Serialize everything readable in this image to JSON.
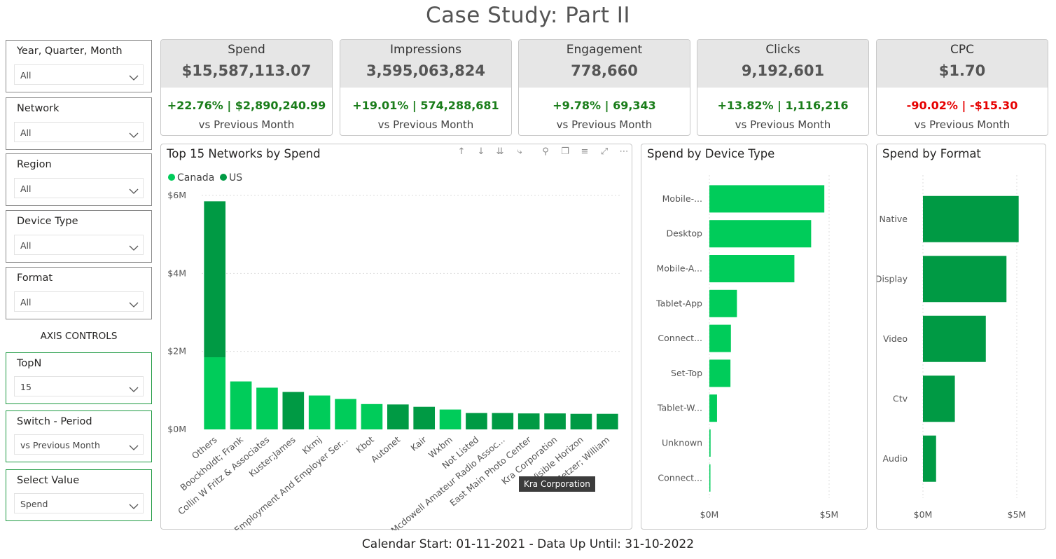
{
  "page": {
    "title": "Case Study: Part II",
    "footer": "Calendar Start: 01-11-2021 - Data Up Until: 31-10-2022"
  },
  "colors": {
    "canada": "#00cc5a",
    "us": "#009a44",
    "bar": "#00cc5a",
    "positive": "#1a7d1a",
    "negative": "#e60000"
  },
  "slicers": [
    {
      "label": "Year, Quarter, Month",
      "value": "All"
    },
    {
      "label": "Network",
      "value": "All"
    },
    {
      "label": "Region",
      "value": "All"
    },
    {
      "label": "Device Type",
      "value": "All"
    },
    {
      "label": "Format",
      "value": "All"
    }
  ],
  "axis_controls": {
    "title": "AXIS CONTROLS",
    "slicers": [
      {
        "label": "TopN",
        "value": "15"
      },
      {
        "label": "Switch - Period",
        "value": "vs Previous Month"
      },
      {
        "label": "Select Value",
        "value": "Spend"
      }
    ]
  },
  "kpis": [
    {
      "label": "Spend",
      "value": "$15,587,113.07",
      "delta": "+22.76% | $2,890,240.99",
      "trend": "positive",
      "sub": "vs Previous Month"
    },
    {
      "label": "Impressions",
      "value": "3,595,063,824",
      "delta": "+19.01% | 574,288,681",
      "trend": "positive",
      "sub": "vs Previous Month"
    },
    {
      "label": "Engagement",
      "value": "778,660",
      "delta": "+9.78% | 69,343",
      "trend": "positive",
      "sub": "vs Previous Month"
    },
    {
      "label": "Clicks",
      "value": "9,192,601",
      "delta": "+13.82% | 1,116,216",
      "trend": "positive",
      "sub": "vs Previous Month"
    },
    {
      "label": "CPC",
      "value": "$1.70",
      "delta": "-90.02% | -$15.30",
      "trend": "negative",
      "sub": "vs Previous Month"
    }
  ],
  "toolbar": {
    "icons": [
      "sort-ascending-icon",
      "sort-descending-icon",
      "expand-all-icon",
      "drill-down-icon",
      "pin-icon",
      "copy-icon",
      "filter-icon",
      "focus-mode-icon",
      "more-options-icon"
    ]
  },
  "tooltip": {
    "text": "Kra Corporation"
  },
  "chart_data": [
    {
      "type": "bar",
      "title": "Top 15 Networks by Spend",
      "stacked": true,
      "legend": "top-left",
      "categories": [
        "Others",
        "Boockholdt; Frank",
        "Collin W Fritz & Associates",
        "Kuster;James",
        "Kkmj",
        "Employment And Employer Ser...",
        "Kbot",
        "Autonet",
        "Kair",
        "Wxbm",
        "Not Listed",
        "Mcdowell Amateur Radio Assoc...",
        "East Main Photo Center",
        "Kra Corporation",
        "Visible Horizon",
        "Metzer; William"
      ],
      "series": [
        {
          "name": "Canada",
          "values": [
            1.85,
            1.23,
            1.07,
            0,
            0.87,
            0.78,
            0.65,
            0,
            0,
            0.51,
            0,
            0,
            0,
            0,
            0,
            0
          ]
        },
        {
          "name": "US",
          "values": [
            4.0,
            0,
            0,
            0.96,
            0,
            0,
            0,
            0.64,
            0.58,
            0,
            0.42,
            0.42,
            0.41,
            0.41,
            0.4,
            0.4
          ]
        }
      ],
      "yticks": [
        "$0M",
        "$2M",
        "$4M",
        "$6M"
      ],
      "ylim": [
        0,
        6
      ]
    },
    {
      "type": "bar",
      "orientation": "horizontal",
      "title": "Spend by Device Type",
      "categories": [
        "Mobile-...",
        "Desktop",
        "Mobile-A...",
        "Tablet-App",
        "Connect...",
        "Set-Top",
        "Tablet-W...",
        "Unknown",
        "Connect..."
      ],
      "values": [
        4.8,
        4.25,
        3.55,
        1.15,
        0.9,
        0.88,
        0.32,
        0.05,
        0.03
      ],
      "xticks": [
        "$0M",
        "$5M"
      ],
      "xlim": [
        0,
        5
      ]
    },
    {
      "type": "bar",
      "orientation": "horizontal",
      "title": "Spend by Format",
      "categories": [
        "Native",
        "Display",
        "Video",
        "Ctv",
        "Audio"
      ],
      "values": [
        5.1,
        4.45,
        3.35,
        1.7,
        0.7
      ],
      "xticks": [
        "$0M",
        "$5M"
      ],
      "xlim": [
        0,
        5
      ]
    }
  ]
}
